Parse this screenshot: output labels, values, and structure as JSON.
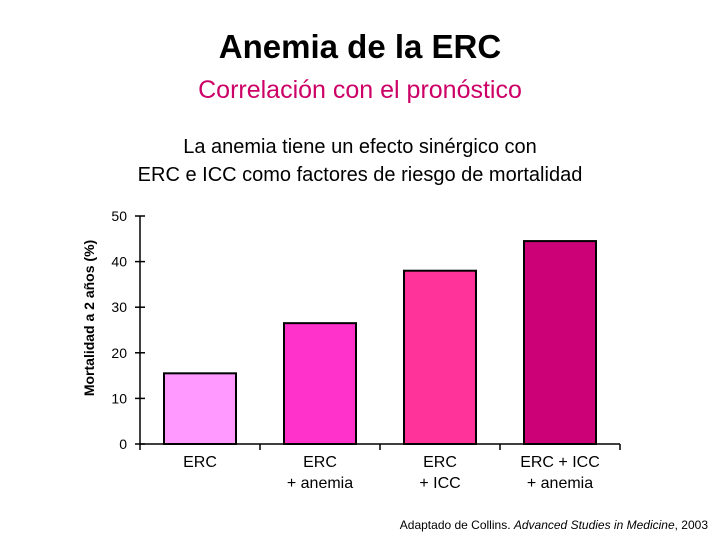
{
  "header": {
    "title": "Anemia de la ERC",
    "subtitle": "Correlación con el pronóstico",
    "caption_line1": "La anemia tiene un efecto sinérgico con",
    "caption_line2": "ERC e ICC como factores de riesgo de mortalidad"
  },
  "source": {
    "prefix": "Adaptado de Collins. ",
    "journal": "Advanced Studies in Medicine",
    "suffix": ", 2003"
  },
  "chart_data": {
    "type": "bar",
    "title": "",
    "xlabel": "",
    "ylabel": "Mortalidad a 2 años (%)",
    "ylim": [
      0,
      50
    ],
    "yticks": [
      0,
      10,
      20,
      30,
      40,
      50
    ],
    "categories": [
      [
        "ERC"
      ],
      [
        "ERC",
        "+ anemia"
      ],
      [
        "ERC",
        "+ ICC"
      ],
      [
        "ERC + ICC",
        "+ anemia"
      ]
    ],
    "values": [
      15.5,
      26.5,
      38,
      44.5
    ],
    "colors": [
      "#ff99ff",
      "#ff33cc",
      "#ff3399",
      "#cc0077"
    ]
  }
}
